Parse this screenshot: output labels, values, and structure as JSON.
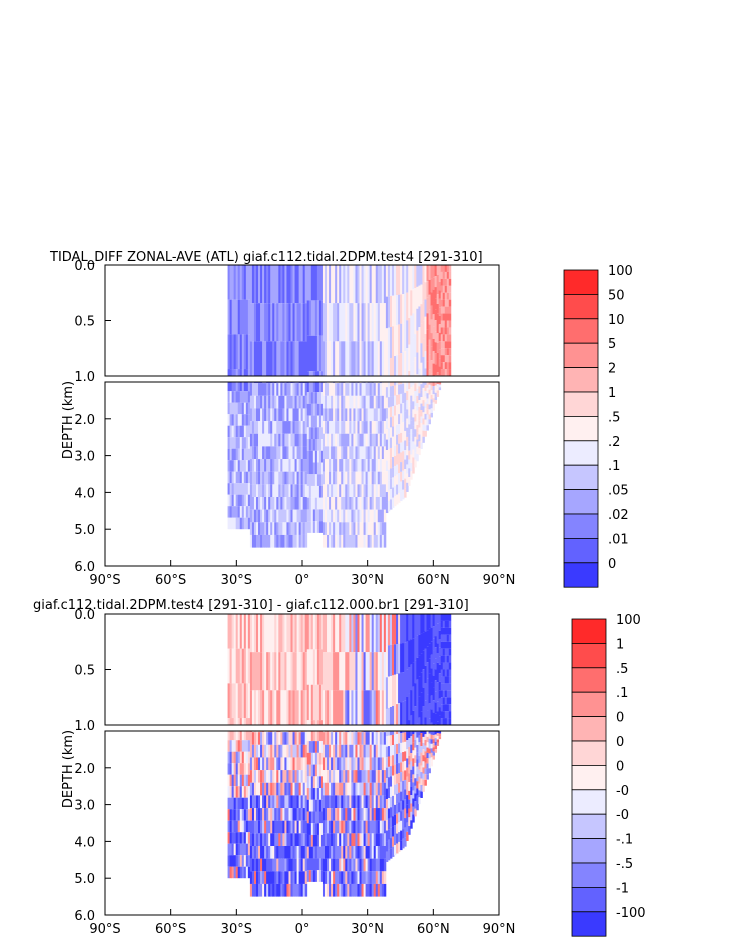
{
  "chart_data": [
    {
      "type": "heatmap",
      "title": "TIDAL_DIFF ZONAL-AVE (ATL) giaf.c112.tidal.2DPM.test4 [291-310]",
      "xlabel": "",
      "ylabel": "DEPTH (km)",
      "x_ticks": [
        "90°S",
        "60°S",
        "30°S",
        "0°",
        "30°N",
        "60°N",
        "90°N"
      ],
      "x_tick_values": [
        -90,
        -60,
        -30,
        0,
        30,
        60,
        90
      ],
      "xlim": [
        -90,
        90
      ],
      "y_ticks_upper": [
        "0.0",
        "0.5",
        "1.0"
      ],
      "y_ticks_lower": [
        "2.0",
        "3.0",
        "4.0",
        "5.0",
        "6.0"
      ],
      "ylim_upper": [
        0,
        1.0
      ],
      "ylim_lower": [
        1.0,
        6.0
      ],
      "data_lat_range": [
        -34,
        68
      ],
      "colorbar_labels": [
        "100",
        "50",
        "10",
        "5",
        "2",
        "1",
        ".5",
        ".2",
        ".1",
        ".05",
        ".02",
        ".01",
        "0"
      ],
      "colorbar_colors": [
        "#ff2a2a",
        "#ff4c4c",
        "#ff6e6e",
        "#ff9292",
        "#ffb4b4",
        "#ffd6d6",
        "#fff0f0",
        "#ececff",
        "#c6c6ff",
        "#a6a6ff",
        "#8484ff",
        "#6262ff",
        "#3a3aff"
      ]
    },
    {
      "type": "heatmap",
      "title": "giaf.c112.tidal.2DPM.test4 [291-310] - giaf.c112.000.br1 [291-310]",
      "xlabel": "",
      "ylabel": "DEPTH (km)",
      "x_ticks": [
        "90°S",
        "60°S",
        "30°S",
        "0°",
        "30°N",
        "60°N",
        "90°N"
      ],
      "x_tick_values": [
        -90,
        -60,
        -30,
        0,
        30,
        60,
        90
      ],
      "xlim": [
        -90,
        90
      ],
      "y_ticks_upper": [
        "0.0",
        "0.5",
        "1.0"
      ],
      "y_ticks_lower": [
        "2.0",
        "3.0",
        "4.0",
        "5.0",
        "6.0"
      ],
      "ylim_upper": [
        0,
        1.0
      ],
      "ylim_lower": [
        1.0,
        6.0
      ],
      "data_lat_range": [
        -34,
        68
      ],
      "colorbar_labels": [
        "100",
        "1",
        ".5",
        ".1",
        "0",
        "0",
        "0",
        "-0",
        "-0",
        "-.1",
        "-.5",
        "-1",
        "-100"
      ],
      "colorbar_colors": [
        "#ff2a2a",
        "#ff4c4c",
        "#ff6e6e",
        "#ff9292",
        "#ffb4b4",
        "#ffd6d6",
        "#fff0f0",
        "#ececff",
        "#c6c6ff",
        "#a6a6ff",
        "#8484ff",
        "#6262ff",
        "#3a3aff"
      ]
    }
  ]
}
